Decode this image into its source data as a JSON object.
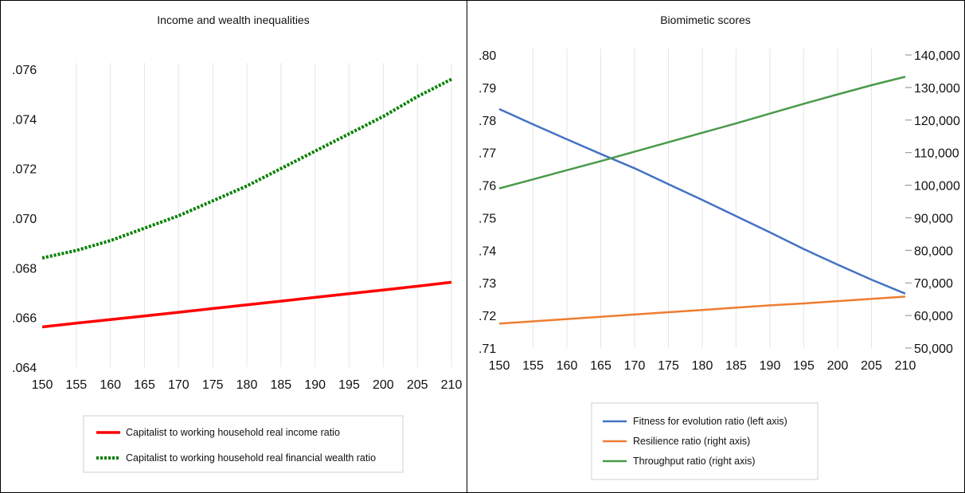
{
  "chart_data": [
    {
      "type": "line",
      "title": "Income and wealth inequalities",
      "xlabel": "",
      "ylabel": "",
      "x": [
        150,
        155,
        160,
        165,
        170,
        175,
        180,
        185,
        190,
        195,
        200,
        205,
        210
      ],
      "x_ticks": [
        "150",
        "155",
        "160",
        "165",
        "170",
        "175",
        "180",
        "185",
        "190",
        "195",
        "200",
        "205",
        "210"
      ],
      "xlim": [
        150,
        210
      ],
      "ylim": [
        0.064,
        0.076
      ],
      "y_ticks": [
        ".064",
        ".066",
        ".068",
        ".070",
        ".072",
        ".074",
        ".076"
      ],
      "y_tick_values": [
        0.064,
        0.066,
        0.068,
        0.07,
        0.072,
        0.074,
        0.076
      ],
      "grid": "vertical",
      "legend_position": "bottom",
      "series": [
        {
          "name": "Capitalist to working household real income ratio",
          "color": "#ff0000",
          "style": "solid",
          "values": [
            0.06562,
            0.06577,
            0.06592,
            0.06606,
            0.06621,
            0.06636,
            0.06651,
            0.06666,
            0.06681,
            0.06696,
            0.06711,
            0.06726,
            0.06742
          ]
        },
        {
          "name": "Capitalist to working household real financial wealth ratio",
          "color": "#008000",
          "style": "dotted",
          "values": [
            0.0684,
            0.0687,
            0.0691,
            0.0696,
            0.0701,
            0.0707,
            0.0713,
            0.072,
            0.0727,
            0.0734,
            0.0741,
            0.0749,
            0.0756
          ]
        }
      ]
    },
    {
      "type": "line",
      "title": "Biomimetic scores",
      "xlabel": "",
      "ylabel": "",
      "x": [
        150,
        155,
        160,
        165,
        170,
        175,
        180,
        185,
        190,
        195,
        200,
        205,
        210
      ],
      "x_ticks": [
        "150",
        "155",
        "160",
        "165",
        "170",
        "175",
        "180",
        "185",
        "190",
        "195",
        "200",
        "205",
        "210"
      ],
      "xlim": [
        150,
        210
      ],
      "ylim_left": [
        0.71,
        0.8
      ],
      "y_ticks_left": [
        ".71",
        ".72",
        ".73",
        ".74",
        ".75",
        ".76",
        ".77",
        ".78",
        ".79",
        ".80"
      ],
      "y_tick_values_left": [
        0.71,
        0.72,
        0.73,
        0.74,
        0.75,
        0.76,
        0.77,
        0.78,
        0.79,
        0.8
      ],
      "ylim_right": [
        50000,
        140000
      ],
      "y_ticks_right": [
        "50,000",
        "60,000",
        "70,000",
        "80,000",
        "90,000",
        "100,000",
        "110,000",
        "120,000",
        "130,000",
        "140,000"
      ],
      "y_tick_values_right": [
        50000,
        60000,
        70000,
        80000,
        90000,
        100000,
        110000,
        120000,
        130000,
        140000
      ],
      "grid": "vertical",
      "legend_position": "bottom",
      "series": [
        {
          "name": "Fitness for evolution ratio  (left axis)",
          "axis": "left",
          "color": "#4472c4",
          "style": "solid",
          "values": [
            0.7834,
            0.7787,
            0.7741,
            0.7696,
            0.7652,
            0.7603,
            0.7555,
            0.7505,
            0.7455,
            0.7404,
            0.7356,
            0.731,
            0.7267
          ]
        },
        {
          "name": "Resilience ratio (right axis)",
          "axis": "right",
          "color": "#ed7d31",
          "style": "solid",
          "values": [
            57500,
            58200,
            58900,
            59600,
            60300,
            61000,
            61700,
            62400,
            63100,
            63700,
            64400,
            65100,
            65800
          ]
        },
        {
          "name": "Throughput ratio (right axis)",
          "axis": "right",
          "color": "#4a9a4a",
          "style": "solid",
          "values": [
            99000,
            101800,
            104600,
            107400,
            110300,
            113200,
            116100,
            119000,
            122000,
            125000,
            127900,
            130700,
            133300
          ]
        }
      ]
    }
  ]
}
